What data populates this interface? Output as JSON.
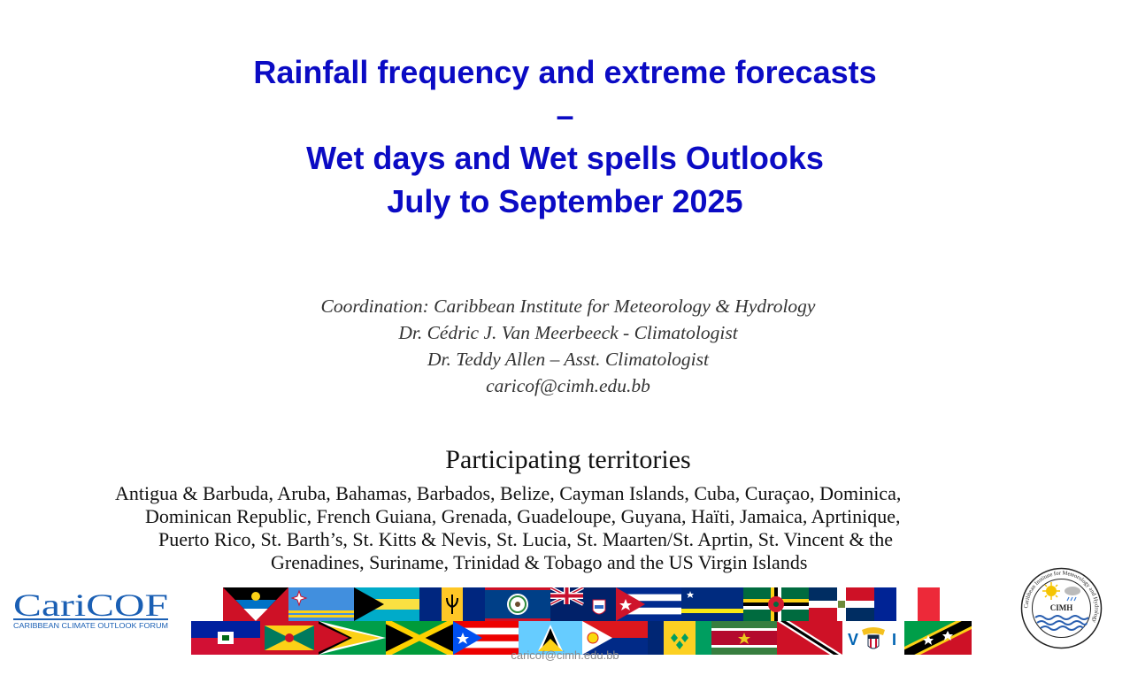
{
  "title": {
    "line1": "Rainfall frequency and extreme forecasts",
    "line2": "–",
    "line3": "Wet days and Wet spells Outlooks",
    "line4": "July to September 2025"
  },
  "credits": {
    "coordination": "Coordination: Caribbean Institute for Meteorology & Hydrology",
    "person1": "Dr. Cédric J. Van Meerbeeck - Climatologist",
    "person2": "Dr. Teddy Allen – Asst. Climatologist",
    "email": "caricof@cimh.edu.bb"
  },
  "territories": {
    "heading": "Participating territories",
    "line1": "Antigua & Barbuda, Aruba, Bahamas, Barbados, Belize, Cayman Islands, Cuba, Curaçao, Dominica,",
    "line2": "Dominican Republic, French Guiana, Grenada, Guadeloupe, Guyana, Haïti, Jamaica, Aprtinique,",
    "line3": "Puerto Rico, St. Barth’s, St. Kitts & Nevis, St. Lucia, St. Maarten/St. Aprtin, St. Vincent & the",
    "line4": "Grenadines, Suriname, Trinidad & Tobago and the US Virgin Islands"
  },
  "logos": {
    "caricof_main": "CariCOF",
    "caricof_sub": "CARIBBEAN CLIMATE OUTLOOK FORUM",
    "cimh_label": "CIMH",
    "cimh_ring": "Caribbean Institute for Meteorology and Hydrology"
  },
  "flags_row1": [
    "antigua-barbuda",
    "aruba",
    "bahamas",
    "barbados",
    "belize",
    "cayman-islands",
    "cuba",
    "curacao",
    "dominica",
    "dominican-republic",
    "france"
  ],
  "flags_row2": [
    "haiti",
    "grenada",
    "guyana",
    "jamaica",
    "puerto-rico",
    "st-lucia",
    "st-maarten",
    "st-vincent",
    "suriname",
    "trinidad-tobago",
    "us-virgin-islands",
    "st-kitts-nevis"
  ],
  "footer": "caricof@cimh.edu.bb",
  "colors": {
    "title": "#0b0bc4",
    "caricof_blue": "#1a5fb4"
  }
}
